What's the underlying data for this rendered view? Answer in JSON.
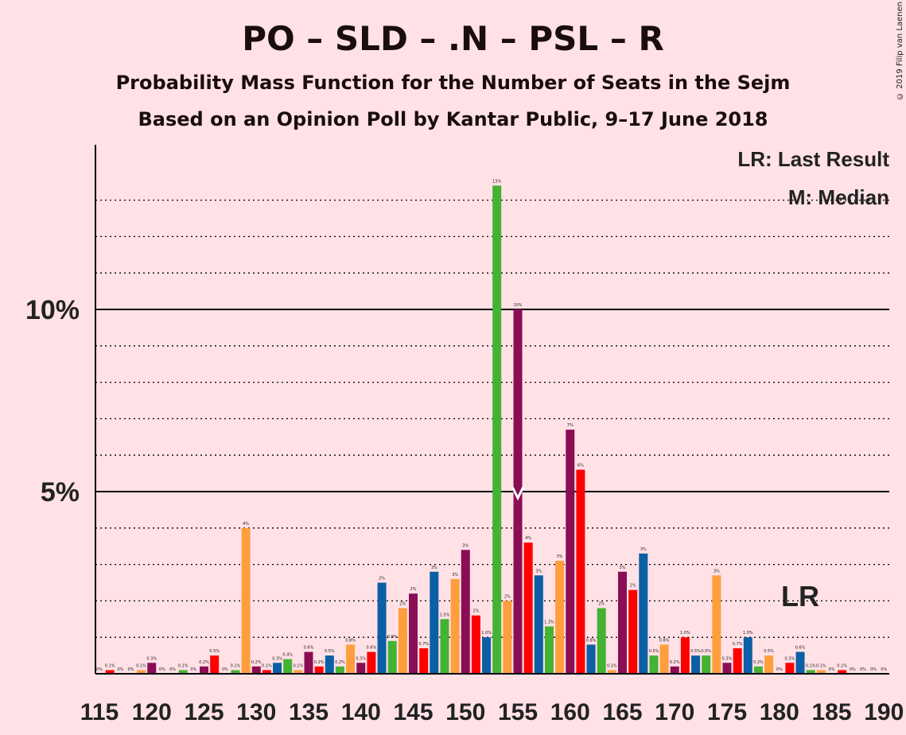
{
  "title": "PO – SLD – .N – PSL – R",
  "subtitle1": "Probability Mass Function for the Number of Seats in the Sejm",
  "subtitle2": "Based on an Opinion Poll by Kantar Public, 9–17 June 2018",
  "copyright": "© 2019 Filip van Laenen",
  "legend": {
    "lr": "LR: Last Result",
    "median": "M: Median"
  },
  "annotations": {
    "lr_label": "LR",
    "lr_seat": 182,
    "median_seat": 155,
    "median_marker": "M"
  },
  "colors": {
    "green": "#44B233",
    "orange": "#FF9E3D",
    "purple": "#8B0D55",
    "blue": "#0B5FA5",
    "red": "#FF0000",
    "background": "#FFE1E6"
  },
  "chart_data": {
    "type": "bar",
    "xlabel": "",
    "ylabel": "",
    "ylim": [
      0,
      14.5
    ],
    "yticks_major": [
      5,
      10
    ],
    "ytick_labels": [
      "5%",
      "10%"
    ],
    "xticks": [
      115,
      120,
      125,
      130,
      135,
      140,
      145,
      150,
      155,
      160,
      165,
      170,
      175,
      180,
      185,
      190
    ],
    "xtick_labels": [
      "115",
      "120",
      "125",
      "130",
      "135",
      "140",
      "145",
      "150",
      "155",
      "160",
      "165",
      "170",
      "175",
      "180",
      "185",
      "190"
    ],
    "grid": "dotted horizontal every 1%, solid at 5% and 10%",
    "seats": [
      115,
      116,
      117,
      118,
      119,
      120,
      121,
      122,
      123,
      124,
      125,
      126,
      127,
      128,
      129,
      130,
      131,
      132,
      133,
      134,
      135,
      136,
      137,
      138,
      139,
      140,
      141,
      142,
      143,
      144,
      145,
      146,
      147,
      148,
      149,
      150,
      151,
      152,
      153,
      154,
      155,
      156,
      157,
      158,
      159,
      160,
      161,
      162,
      163,
      164,
      165,
      166,
      167,
      168,
      169,
      170,
      171,
      172,
      173,
      174,
      175,
      176,
      177,
      178,
      179,
      180,
      181,
      182,
      183,
      184,
      185,
      186,
      187,
      188,
      189,
      190
    ],
    "values": [
      0,
      0.1,
      0,
      0,
      0.1,
      0.3,
      0,
      0,
      0.1,
      0,
      0.2,
      0.5,
      0,
      0.1,
      4.0,
      0.2,
      0.1,
      0.3,
      0.4,
      0.1,
      0.6,
      0.2,
      0.5,
      0.2,
      0.8,
      0.3,
      0.6,
      2.5,
      0.9,
      1.8,
      2.2,
      0.7,
      2.8,
      1.5,
      2.6,
      3.4,
      1.6,
      1.0,
      13.4,
      2.0,
      10.0,
      3.6,
      2.7,
      1.3,
      3.1,
      6.7,
      5.6,
      0.8,
      1.8,
      0.1,
      2.8,
      2.3,
      3.3,
      0.5,
      0.8,
      0.2,
      1.0,
      0.5,
      0.5,
      2.7,
      0.3,
      0.7,
      1.0,
      0.2,
      0.5,
      0,
      0.3,
      0.6,
      0.1,
      0.1,
      0,
      0.1,
      0,
      0,
      0,
      0
    ],
    "labels": [
      "0%",
      "0.1%",
      "0%",
      "0%",
      "0.1%",
      "0.3%",
      "0%",
      "0%",
      "0.1%",
      "0%",
      "0.2%",
      "0.5%",
      "0%",
      "0.1%",
      "4%",
      "0.2%",
      "0.1%",
      "0.3%",
      "0.4%",
      "0.1%",
      "0.6%",
      "0.2%",
      "0.5%",
      "0.2%",
      "0.8%",
      "0.3%",
      "0.6%",
      "2%",
      "0.9%",
      "2%",
      "2%",
      "0.7%",
      "3%",
      "1.5%",
      "3%",
      "3%",
      "2%",
      "1.0%",
      "13%",
      "2%",
      "10%",
      "4%",
      "3%",
      "1.3%",
      "3%",
      "7%",
      "6%",
      "0.8%",
      "2%",
      "0.1%",
      "3%",
      "2%",
      "3%",
      "0.5%",
      "0.8%",
      "0.2%",
      "1.0%",
      "0.5%",
      "0.5%",
      "3%",
      "0.3%",
      "0.7%",
      "1.0%",
      "0.2%",
      "0.5%",
      "0%",
      "0.3%",
      "0.6%",
      "0.1%",
      "0.1%",
      "0%",
      "0.1%",
      "0%",
      "0%",
      "0%",
      "0%"
    ],
    "color_cycle": [
      "purple",
      "red",
      "blue",
      "green",
      "orange"
    ]
  }
}
